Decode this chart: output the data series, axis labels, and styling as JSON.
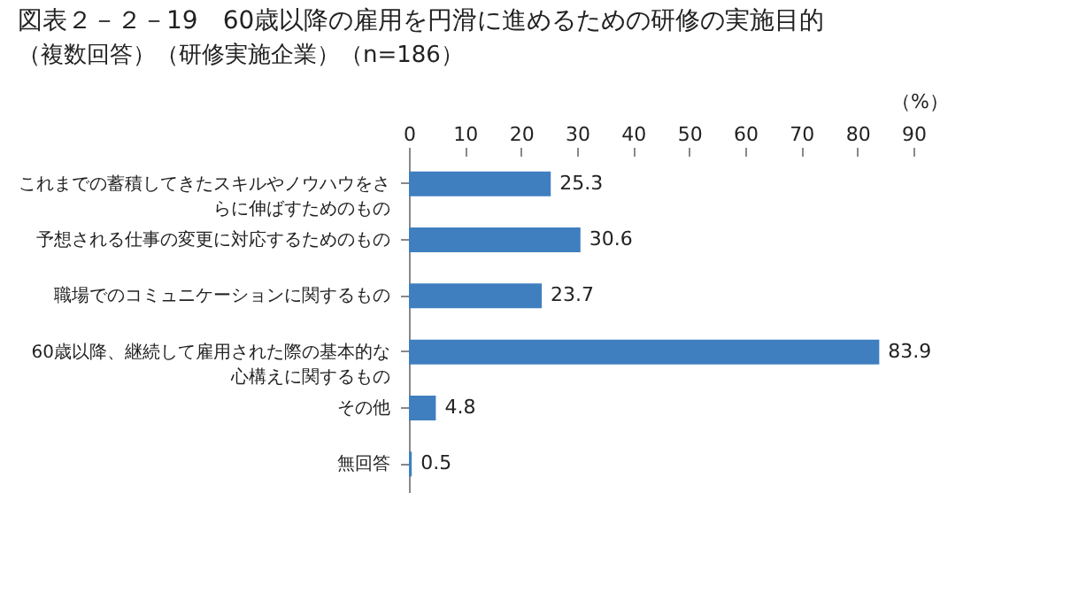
{
  "chart_data": {
    "type": "bar",
    "orientation": "horizontal",
    "title": "図表２－２－19　60歳以降の雇用を円滑に進めるための研修の実施目的",
    "subtitle": "（複数回答）（研修実施企業）（n=186）",
    "xlabel": "（%）",
    "categories": [
      "これまでの蓄積してきたスキルやノウハウをさらに伸ばすためのもの",
      "予想される仕事の変更に対応するためのもの",
      "職場でのコミュニケーションに関するもの",
      "60歳以降、継続して雇用された際の基本的な心構えに関するもの",
      "その他",
      "無回答"
    ],
    "values": [
      25.3,
      30.6,
      23.7,
      83.9,
      4.8,
      0.5
    ],
    "color": "#3f7fc0",
    "xlim": [
      0,
      90
    ],
    "xticks": [
      0,
      10,
      20,
      30,
      40,
      50,
      60,
      70,
      80,
      90
    ],
    "data_labels": true,
    "grid": false
  }
}
